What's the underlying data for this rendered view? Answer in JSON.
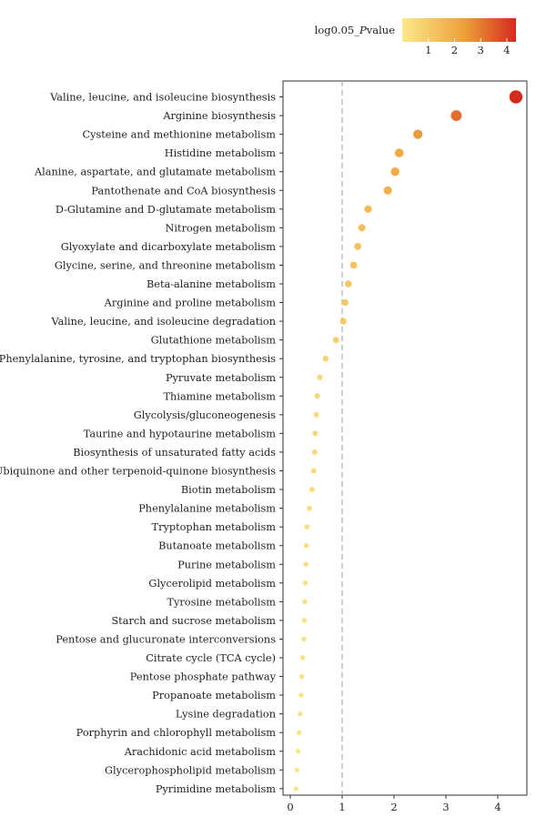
{
  "chart_data": {
    "type": "scatter",
    "title": "",
    "xlabel": "",
    "ylabel": "",
    "xlim": [
      -0.1,
      4.5
    ],
    "x_ticks": [
      "0",
      "1",
      "2",
      "3",
      "4"
    ],
    "reference_line": {
      "x": 1,
      "style": "dashed",
      "color": "#aaaaaa"
    },
    "legend": {
      "title_prefix": "log0.05_",
      "title_italic": "P",
      "title_suffix": "value",
      "placement": "top-right",
      "ticks": [
        "1",
        "2",
        "3",
        "4"
      ],
      "range": [
        0,
        4.35
      ],
      "color_low": "#fbe98a",
      "color_high": "#d42a1e"
    },
    "categories": [
      "Valine, leucine, and isoleucine biosynthesis",
      "Arginine biosynthesis",
      "Cysteine and methionine metabolism",
      "Histidine metabolism",
      "Alanine, aspartate, and glutamate metabolism",
      "Pantothenate and CoA biosynthesis",
      "D-Glutamine and D-glutamate metabolism",
      "Nitrogen metabolism",
      "Glyoxylate and dicarboxylate metabolism",
      "Glycine, serine, and threonine metabolism",
      "Beta-alanine metabolism",
      "Arginine and proline metabolism",
      "Valine, leucine, and isoleucine degradation",
      "Glutathione metabolism",
      "Phenylalanine, tyrosine, and tryptophan biosynthesis",
      "Pyruvate metabolism",
      "Thiamine metabolism",
      "Glycolysis/gluconeogenesis",
      "Taurine and hypotaurine metabolism",
      "Biosynthesis of unsaturated fatty acids",
      "Ubiquinone and other terpenoid-quinone biosynthesis",
      "Biotin metabolism",
      "Phenylalanine metabolism",
      "Tryptophan metabolism",
      "Butanoate metabolism",
      "Purine metabolism",
      "Glycerolipid metabolism",
      "Tyrosine metabolism",
      "Starch and sucrose metabolism",
      "Pentose and glucuronate interconversions",
      "Citrate cycle (TCA cycle)",
      "Pentose phosphate pathway",
      "Propanoate metabolism",
      "Lysine degradation",
      "Porphyrin and chlorophyll metabolism",
      "Arachidonic acid metabolism",
      "Glycerophospholipid metabolism",
      "Pyrimidine metabolism"
    ],
    "values": [
      4.35,
      3.2,
      2.46,
      2.1,
      2.02,
      1.88,
      1.5,
      1.38,
      1.3,
      1.22,
      1.12,
      1.06,
      1.02,
      0.88,
      0.68,
      0.57,
      0.52,
      0.5,
      0.48,
      0.47,
      0.45,
      0.42,
      0.37,
      0.32,
      0.31,
      0.3,
      0.29,
      0.28,
      0.27,
      0.26,
      0.24,
      0.22,
      0.21,
      0.19,
      0.17,
      0.15,
      0.13,
      0.11
    ]
  }
}
